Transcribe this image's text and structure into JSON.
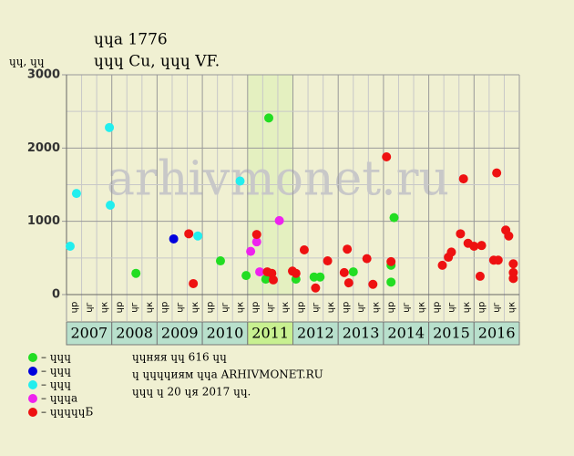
{
  "chart_data": {
    "type": "scatter",
    "title": "ɥɥa 1776",
    "subtitle": "ɥɥɥ Cu, ɥɥɥ VF.",
    "ylabel": "ɥɥ, ɥɥ",
    "watermark": "arhivmonet.ru",
    "xlim": [
      0,
      30
    ],
    "ylim": [
      0,
      3000
    ],
    "yticks": [
      0,
      1000,
      2000,
      3000
    ],
    "y_minor_grid": [
      500,
      1500,
      2500
    ],
    "years": [
      "2007",
      "2008",
      "2009",
      "2010",
      "2011",
      "2012",
      "2013",
      "2014",
      "2015",
      "2016"
    ],
    "sub_labels": [
      "ɥp",
      "ɥг",
      "ɥк"
    ],
    "highlight_year": "2011",
    "series": [
      {
        "name": "– ɥɥɥ",
        "color": "#22dd22",
        "x": [
          4.6,
          10.2,
          11.9,
          13.2,
          13.4,
          15.2,
          16.4,
          16.8,
          19.0,
          21.5,
          21.5,
          21.7
        ],
        "values": [
          290,
          460,
          260,
          210,
          2410,
          210,
          240,
          240,
          310,
          170,
          400,
          1050
        ]
      },
      {
        "name": "– ɥɥɥ",
        "color": "#0000dd",
        "x": [
          7.1
        ],
        "values": [
          760
        ]
      },
      {
        "name": "– ɥɥɥ",
        "color": "#22eeee",
        "x": [
          0.24,
          0.66,
          2.84,
          2.9,
          8.7,
          11.5
        ],
        "values": [
          660,
          1380,
          2280,
          1220,
          800,
          1550
        ]
      },
      {
        "name": "– ɥɥɥa",
        "color": "#ee22ee",
        "x": [
          12.2,
          12.6,
          12.8,
          14.1
        ],
        "values": [
          590,
          720,
          310,
          1010
        ]
      },
      {
        "name": "– ɥɥɥɥɥБ",
        "color": "#ee1111",
        "x": [
          8.1,
          8.4,
          12.6,
          13.3,
          13.6,
          13.7,
          14.97,
          15.2,
          15.75,
          16.5,
          17.3,
          18.4,
          18.6,
          18.7,
          19.9,
          20.3,
          21.2,
          21.5,
          24.9,
          25.3,
          25.5,
          26.1,
          26.3,
          26.6,
          27.0,
          27.5,
          27.4,
          28.3,
          28.6,
          28.5,
          29.1,
          29.3,
          29.6,
          29.6,
          29.6
        ],
        "values": [
          830,
          150,
          820,
          310,
          290,
          200,
          320,
          290,
          610,
          90,
          460,
          300,
          620,
          160,
          490,
          140,
          1880,
          450,
          400,
          510,
          580,
          830,
          1580,
          700,
          660,
          670,
          250,
          470,
          470,
          1660,
          880,
          800,
          220,
          420,
          300
        ]
      }
    ],
    "notes": [
      "ɥɥняя ɥɥ 616 ɥɥ",
      "ɥ ɥɥɥɥиям ɥɥa ARHIVMONET.RU",
      "ɥɥɥ ɥ 20 ɥя 2017 ɥɥ."
    ]
  }
}
